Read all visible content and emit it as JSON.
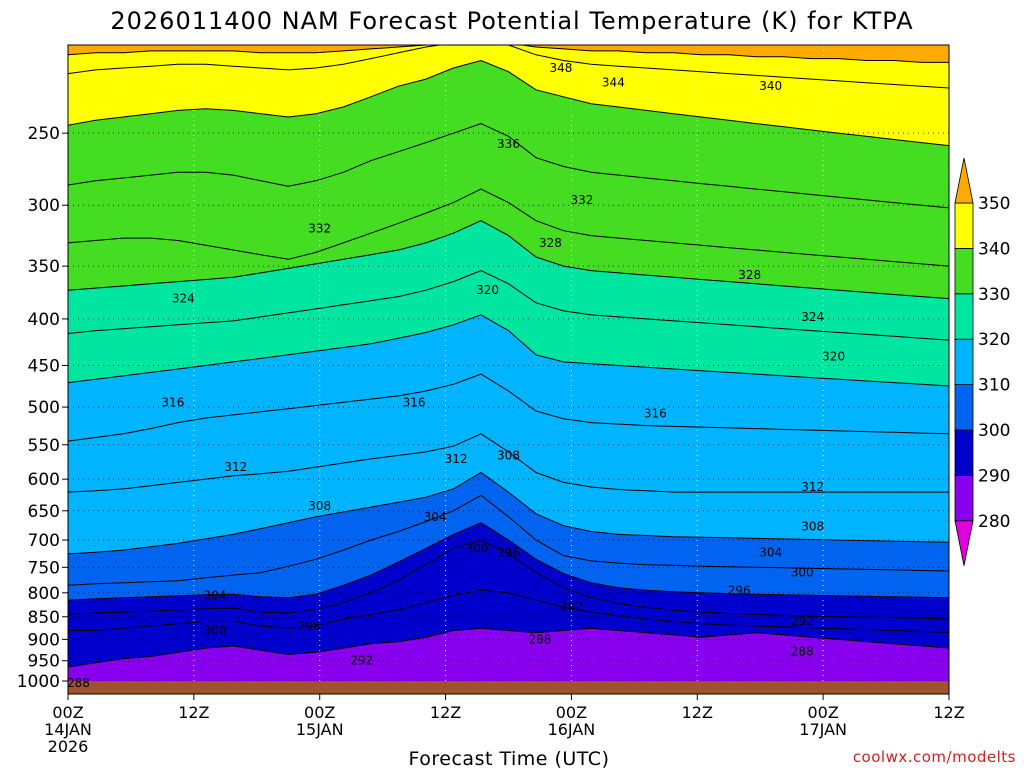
{
  "chart_data": {
    "type": "heatmap",
    "title": "2026011400 NAM Forecast Potential Temperature (K) for KTPA",
    "xlabel": "Forecast Time (UTC)",
    "ylabel": "",
    "credit": "coolwx.com/modelts",
    "y_axis": {
      "scale": "pressure (inverted, log-like)",
      "range": [
        1000,
        200
      ],
      "ticks": [
        250,
        300,
        350,
        400,
        450,
        500,
        550,
        600,
        650,
        700,
        750,
        800,
        850,
        900,
        950,
        1000
      ]
    },
    "x_axis": {
      "range_hours": [
        0,
        84
      ],
      "ticks": [
        {
          "hour": 0,
          "lines": [
            "00Z",
            "14JAN",
            "2026"
          ]
        },
        {
          "hour": 12,
          "lines": [
            "12Z"
          ]
        },
        {
          "hour": 24,
          "lines": [
            "00Z",
            "15JAN"
          ]
        },
        {
          "hour": 36,
          "lines": [
            "12Z"
          ]
        },
        {
          "hour": 48,
          "lines": [
            "00Z",
            "16JAN"
          ]
        },
        {
          "hour": 60,
          "lines": [
            "12Z"
          ]
        },
        {
          "hour": 72,
          "lines": [
            "00Z",
            "17JAN"
          ]
        },
        {
          "hour": 84,
          "lines": [
            "12Z"
          ]
        }
      ]
    },
    "colorbar": {
      "levels": [
        280,
        290,
        300,
        310,
        320,
        330,
        340,
        350
      ],
      "colors": [
        "#e000e0",
        "#8800ee",
        "#0000cc",
        "#0064f0",
        "#00b4ff",
        "#00e6a0",
        "#44dd22",
        "#ffff00",
        "#ffaa00"
      ]
    },
    "grid": true,
    "contour_interval_K": 4,
    "isentropes": [
      {
        "theta": 288,
        "pressures": [
          965,
          955,
          945,
          940,
          930,
          920,
          915,
          925,
          935,
          930,
          920,
          910,
          905,
          895,
          880,
          875,
          880,
          885,
          880,
          875,
          880,
          885,
          890,
          895,
          890,
          885,
          890,
          895,
          900,
          905,
          910,
          915,
          920
        ]
      },
      {
        "theta": 292,
        "pressures": [
          880,
          880,
          875,
          870,
          865,
          860,
          860,
          870,
          875,
          870,
          855,
          845,
          835,
          820,
          805,
          795,
          800,
          815,
          830,
          840,
          848,
          855,
          860,
          865,
          868,
          870,
          872,
          874,
          876,
          878,
          880,
          882,
          885
        ]
      },
      {
        "theta": 296,
        "pressures": [
          845,
          842,
          840,
          838,
          835,
          833,
          832,
          840,
          842,
          835,
          820,
          800,
          775,
          745,
          715,
          700,
          725,
          760,
          790,
          810,
          822,
          830,
          836,
          840,
          843,
          845,
          847,
          849,
          850,
          851,
          852,
          853,
          855
        ]
      },
      {
        "theta": 300,
        "pressures": [
          815,
          812,
          810,
          808,
          806,
          804,
          803,
          808,
          810,
          803,
          785,
          765,
          740,
          715,
          690,
          670,
          700,
          735,
          762,
          780,
          790,
          795,
          798,
          800,
          802,
          803,
          804,
          805,
          806,
          807,
          808,
          809,
          810
        ]
      },
      {
        "theta": 304,
        "pressures": [
          785,
          782,
          780,
          778,
          776,
          770,
          765,
          760,
          748,
          735,
          718,
          700,
          685,
          668,
          650,
          625,
          660,
          700,
          728,
          738,
          742,
          745,
          746,
          748,
          749,
          750,
          751,
          752,
          753,
          754,
          755,
          756,
          757
        ]
      },
      {
        "theta": 308,
        "pressures": [
          725,
          722,
          718,
          712,
          706,
          698,
          690,
          680,
          670,
          660,
          652,
          644,
          636,
          628,
          615,
          590,
          620,
          655,
          675,
          685,
          690,
          692,
          694,
          695,
          696,
          697,
          698,
          699,
          700,
          701,
          702,
          703,
          704
        ]
      },
      {
        "theta": 312,
        "pressures": [
          620,
          618,
          615,
          610,
          605,
          600,
          595,
          592,
          588,
          582,
          576,
          570,
          565,
          560,
          552,
          535,
          560,
          590,
          605,
          612,
          616,
          618,
          620,
          620,
          620,
          620,
          620,
          620,
          620,
          620,
          620,
          620,
          620
        ]
      },
      {
        "theta": 316,
        "pressures": [
          545,
          540,
          535,
          528,
          520,
          514,
          510,
          506,
          502,
          498,
          494,
          490,
          486,
          480,
          472,
          460,
          480,
          505,
          515,
          520,
          522,
          524,
          525,
          526,
          527,
          528,
          529,
          530,
          531,
          532,
          533,
          534,
          535
        ]
      },
      {
        "theta": 320,
        "pressures": [
          470,
          466,
          462,
          458,
          454,
          450,
          446,
          442,
          438,
          434,
          430,
          426,
          420,
          414,
          406,
          396,
          412,
          438,
          446,
          448,
          450,
          452,
          454,
          456,
          458,
          460,
          462,
          464,
          466,
          468,
          470,
          472,
          474
        ]
      },
      {
        "theta": 324,
        "pressures": [
          415,
          412,
          410,
          408,
          406,
          404,
          402,
          398,
          394,
          390,
          386,
          382,
          378,
          372,
          364,
          354,
          366,
          384,
          392,
          396,
          398,
          400,
          402,
          404,
          406,
          408,
          410,
          412,
          414,
          416,
          418,
          420,
          422
        ]
      },
      {
        "theta": 328,
        "pressures": [
          372,
          370,
          368,
          366,
          364,
          362,
          360,
          356,
          352,
          348,
          344,
          340,
          336,
          330,
          322,
          312,
          324,
          342,
          350,
          354,
          356,
          358,
          360,
          362,
          364,
          366,
          368,
          370,
          372,
          374,
          376,
          378,
          380
        ]
      },
      {
        "theta": 332,
        "pressures": [
          330,
          328,
          326,
          326,
          328,
          332,
          336,
          340,
          344,
          338,
          330,
          322,
          314,
          306,
          298,
          288,
          298,
          312,
          320,
          324,
          326,
          328,
          330,
          332,
          334,
          336,
          338,
          340,
          342,
          344,
          346,
          348,
          350
        ]
      },
      {
        "theta": 336,
        "pressures": [
          285,
          282,
          280,
          278,
          276,
          276,
          278,
          282,
          286,
          282,
          276,
          268,
          262,
          256,
          250,
          244,
          252,
          266,
          272,
          276,
          278,
          280,
          282,
          284,
          286,
          288,
          290,
          292,
          294,
          296,
          298,
          300,
          302
        ]
      },
      {
        "theta": 340,
        "pressures": [
          245,
          242,
          240,
          238,
          236,
          235,
          236,
          238,
          240,
          238,
          234,
          228,
          222,
          218,
          212,
          208,
          214,
          224,
          228,
          232,
          234,
          236,
          238,
          240,
          242,
          244,
          246,
          248,
          250,
          252,
          254,
          256,
          258
        ]
      },
      {
        "theta": 344,
        "pressures": [
          215,
          213,
          212,
          211,
          210,
          210,
          211,
          212,
          213,
          212,
          210,
          207,
          204,
          201,
          199,
          198,
          200,
          205,
          208,
          210,
          211,
          212,
          213,
          214,
          215,
          216,
          217,
          218,
          219,
          220,
          221,
          222,
          223
        ]
      },
      {
        "theta": 348,
        "pressures": [
          205,
          204,
          204,
          203,
          203,
          203,
          203,
          204,
          204,
          204,
          203,
          202,
          201,
          200,
          199,
          198,
          199,
          201,
          202,
          203,
          203,
          204,
          204,
          205,
          205,
          206,
          206,
          207,
          207,
          208,
          208,
          209,
          209
        ]
      }
    ],
    "isentrope_hours": [
      0,
      2.625,
      5.25,
      7.875,
      10.5,
      13.125,
      15.75,
      18.375,
      21,
      23.625,
      26.25,
      28.875,
      31.5,
      34.125,
      36.75,
      39.375,
      42,
      44.625,
      47.25,
      49.875,
      52.5,
      55.125,
      57.75,
      60.375,
      63,
      65.625,
      68.25,
      70.875,
      73.5,
      76.125,
      78.75,
      81.375,
      84
    ],
    "contour_labels": [
      {
        "text": "348",
        "hour": 47,
        "p": 212
      },
      {
        "text": "344",
        "hour": 52,
        "p": 220
      },
      {
        "text": "340",
        "hour": 67,
        "p": 222
      },
      {
        "text": "336",
        "hour": 42,
        "p": 257
      },
      {
        "text": "332",
        "hour": 49,
        "p": 296
      },
      {
        "text": "332",
        "hour": 24,
        "p": 318
      },
      {
        "text": "328",
        "hour": 46,
        "p": 330
      },
      {
        "text": "328",
        "hour": 65,
        "p": 358
      },
      {
        "text": "324",
        "hour": 11,
        "p": 380
      },
      {
        "text": "324",
        "hour": 71,
        "p": 398
      },
      {
        "text": "320",
        "hour": 40,
        "p": 372
      },
      {
        "text": "320",
        "hour": 73,
        "p": 440
      },
      {
        "text": "316",
        "hour": 10,
        "p": 494
      },
      {
        "text": "316",
        "hour": 33,
        "p": 494
      },
      {
        "text": "316",
        "hour": 56,
        "p": 508
      },
      {
        "text": "312",
        "hour": 16,
        "p": 582
      },
      {
        "text": "312",
        "hour": 37,
        "p": 570
      },
      {
        "text": "312",
        "hour": 71,
        "p": 612
      },
      {
        "text": "308",
        "hour": 42,
        "p": 565
      },
      {
        "text": "308",
        "hour": 24,
        "p": 642
      },
      {
        "text": "308",
        "hour": 71,
        "p": 676
      },
      {
        "text": "304",
        "hour": 35,
        "p": 660
      },
      {
        "text": "304",
        "hour": 67,
        "p": 722
      },
      {
        "text": "304",
        "hour": 14,
        "p": 805
      },
      {
        "text": "300",
        "hour": 39,
        "p": 715
      },
      {
        "text": "300",
        "hour": 70,
        "p": 760
      },
      {
        "text": "300",
        "hour": 14,
        "p": 880
      },
      {
        "text": "296",
        "hour": 42,
        "p": 722
      },
      {
        "text": "296",
        "hour": 64,
        "p": 795
      },
      {
        "text": "296",
        "hour": 23,
        "p": 870
      },
      {
        "text": "292",
        "hour": 48,
        "p": 828
      },
      {
        "text": "292",
        "hour": 70,
        "p": 860
      },
      {
        "text": "292",
        "hour": 28,
        "p": 950
      },
      {
        "text": "288",
        "hour": 45,
        "p": 900
      },
      {
        "text": "288",
        "hour": 70,
        "p": 928
      },
      {
        "text": "288",
        "hour": 1,
        "p": 1005
      }
    ]
  }
}
